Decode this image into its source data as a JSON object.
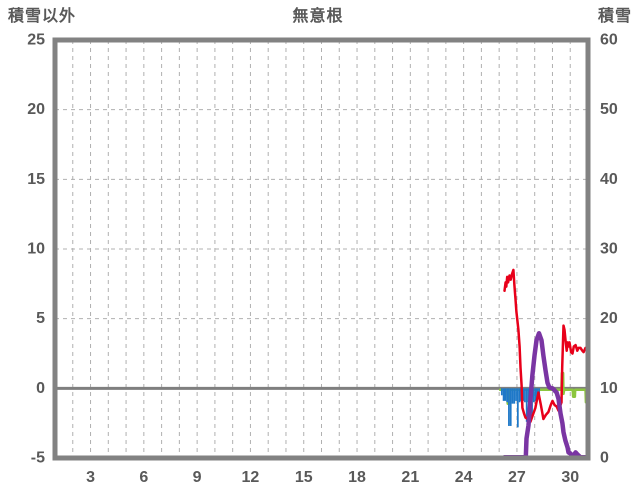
{
  "header": {
    "left_label": "積雪以外",
    "title": "無意根",
    "right_label": "積雪"
  },
  "chart_data": {
    "type": "line",
    "title": "無意根",
    "left_axis": {
      "label": "積雪以外",
      "min": -5,
      "max": 25,
      "ticks": [
        25,
        20,
        15,
        10,
        5,
        0,
        -5
      ]
    },
    "right_axis": {
      "label": "積雪",
      "min": 0,
      "max": 60,
      "ticks": [
        60,
        50,
        40,
        30,
        20,
        10,
        0
      ]
    },
    "x_axis": {
      "min": 1,
      "max": 31,
      "gridline_step": 1,
      "tick_labels": [
        3,
        6,
        9,
        12,
        15,
        18,
        21,
        24,
        27,
        30
      ]
    },
    "grid": {
      "color": "#b0b0b0",
      "dash": "4 4",
      "horizontal_at_left_values": [
        5,
        10,
        15,
        20
      ]
    },
    "zero_line": {
      "value": 0,
      "color": "#7f7f7f",
      "width": 3
    },
    "frame_color": "#828282",
    "text_color": "#595959",
    "background": "#ffffff",
    "legend": "none",
    "series": [
      {
        "name": "green-line",
        "axis": "left",
        "type": "line",
        "color": "#8cc63f",
        "width": 2.5,
        "points": [
          [
            26.05,
            -0.1
          ],
          [
            26.45,
            -0.1
          ],
          [
            26.48,
            -1.1
          ],
          [
            26.56,
            -1.1
          ],
          [
            26.6,
            -0.1
          ],
          [
            29.5,
            -0.1
          ],
          [
            29.53,
            1.1
          ],
          [
            29.6,
            1.1
          ],
          [
            29.62,
            -0.4
          ],
          [
            29.66,
            -0.1
          ],
          [
            30.14,
            -0.1
          ],
          [
            30.16,
            -0.6
          ],
          [
            30.26,
            -0.6
          ],
          [
            30.28,
            -0.1
          ],
          [
            30.86,
            -0.1
          ],
          [
            30.88,
            -1.0
          ],
          [
            30.95,
            -1.0
          ],
          [
            30.97,
            -0.1
          ],
          [
            31.0,
            -0.1
          ]
        ]
      },
      {
        "name": "blue-bars",
        "axis": "left",
        "type": "bar",
        "color": "#1e78c8",
        "bar_width_days": 0.1,
        "points": [
          [
            26.15,
            -0.5
          ],
          [
            26.25,
            -0.9
          ],
          [
            26.35,
            -0.9
          ],
          [
            26.45,
            -1.0
          ],
          [
            26.55,
            -2.7
          ],
          [
            26.65,
            -2.7
          ],
          [
            26.75,
            -1.1
          ],
          [
            26.85,
            -1.1
          ],
          [
            26.95,
            -0.9
          ],
          [
            27.05,
            -2.8
          ],
          [
            27.15,
            -1.0
          ],
          [
            27.25,
            -0.9
          ],
          [
            27.35,
            -0.9
          ],
          [
            27.45,
            -1.0
          ],
          [
            27.55,
            -2.4
          ],
          [
            27.65,
            -1.0
          ],
          [
            27.75,
            -0.9
          ],
          [
            27.85,
            -2.1
          ],
          [
            27.95,
            -1.0
          ],
          [
            28.05,
            -0.9
          ],
          [
            28.15,
            -0.8
          ],
          [
            28.25,
            -0.7
          ]
        ]
      },
      {
        "name": "red-line",
        "axis": "left",
        "type": "line",
        "color": "#e8001a",
        "width": 2.5,
        "points": [
          [
            26.3,
            7.0
          ],
          [
            26.36,
            7.6
          ],
          [
            26.4,
            7.3
          ],
          [
            26.45,
            8.0
          ],
          [
            26.5,
            7.6
          ],
          [
            26.58,
            8.1
          ],
          [
            26.65,
            7.8
          ],
          [
            26.72,
            8.2
          ],
          [
            26.8,
            8.5
          ],
          [
            26.86,
            7.4
          ],
          [
            26.92,
            6.4
          ],
          [
            26.97,
            5.5
          ],
          [
            27.03,
            4.8
          ],
          [
            27.08,
            4.2
          ],
          [
            27.15,
            3.0
          ],
          [
            27.2,
            1.5
          ],
          [
            27.26,
            0.2
          ],
          [
            27.31,
            -1.4
          ],
          [
            27.4,
            -1.8
          ],
          [
            27.48,
            -2.1
          ],
          [
            27.6,
            -2.2
          ],
          [
            27.76,
            -2.4
          ],
          [
            27.9,
            -1.9
          ],
          [
            28.04,
            -1.4
          ],
          [
            28.21,
            -0.3
          ],
          [
            28.35,
            -1.2
          ],
          [
            28.49,
            -2.2
          ],
          [
            28.63,
            -1.9
          ],
          [
            28.77,
            -1.7
          ],
          [
            28.9,
            -1.2
          ],
          [
            29.0,
            -0.9
          ],
          [
            29.12,
            -1.2
          ],
          [
            29.23,
            -1.3
          ],
          [
            29.34,
            -1.6
          ],
          [
            29.45,
            -1.2
          ],
          [
            29.51,
            -1.0
          ],
          [
            29.55,
            1.5
          ],
          [
            29.62,
            4.5
          ],
          [
            29.68,
            4.2
          ],
          [
            29.74,
            3.4
          ],
          [
            29.8,
            2.7
          ],
          [
            29.85,
            3.3
          ],
          [
            29.9,
            3.0
          ],
          [
            29.96,
            3.3
          ],
          [
            30.05,
            2.6
          ],
          [
            30.13,
            2.5
          ],
          [
            30.2,
            3.0
          ],
          [
            30.3,
            3.1
          ],
          [
            30.4,
            2.7
          ],
          [
            30.47,
            2.9
          ],
          [
            30.58,
            2.9
          ],
          [
            30.68,
            2.7
          ],
          [
            30.75,
            2.6
          ],
          [
            30.86,
            2.9
          ],
          [
            30.97,
            2.7
          ]
        ]
      },
      {
        "name": "purple-line",
        "axis": "right",
        "type": "line",
        "color": "#7a35a3",
        "width": 4.5,
        "points": [
          [
            26.3,
            0.1
          ],
          [
            27.5,
            0.1
          ],
          [
            27.54,
            2.8
          ],
          [
            27.65,
            4.7
          ],
          [
            27.76,
            8.3
          ],
          [
            27.87,
            11.9
          ],
          [
            27.99,
            14.7
          ],
          [
            28.1,
            16.9
          ],
          [
            28.24,
            17.9
          ],
          [
            28.38,
            16.9
          ],
          [
            28.49,
            14.7
          ],
          [
            28.61,
            12.6
          ],
          [
            28.72,
            10.8
          ],
          [
            28.83,
            10.1
          ],
          [
            29.0,
            10.0
          ],
          [
            29.23,
            9.4
          ],
          [
            29.34,
            8.5
          ],
          [
            29.45,
            6.4
          ],
          [
            29.56,
            5.0
          ],
          [
            29.62,
            3.7
          ],
          [
            29.73,
            2.5
          ],
          [
            29.85,
            1.5
          ],
          [
            29.9,
            0.8
          ],
          [
            30.01,
            0.65
          ],
          [
            30.13,
            0.2
          ],
          [
            30.3,
            0.8
          ],
          [
            30.41,
            0.5
          ],
          [
            30.58,
            0.1
          ],
          [
            30.97,
            0.1
          ]
        ]
      }
    ]
  }
}
